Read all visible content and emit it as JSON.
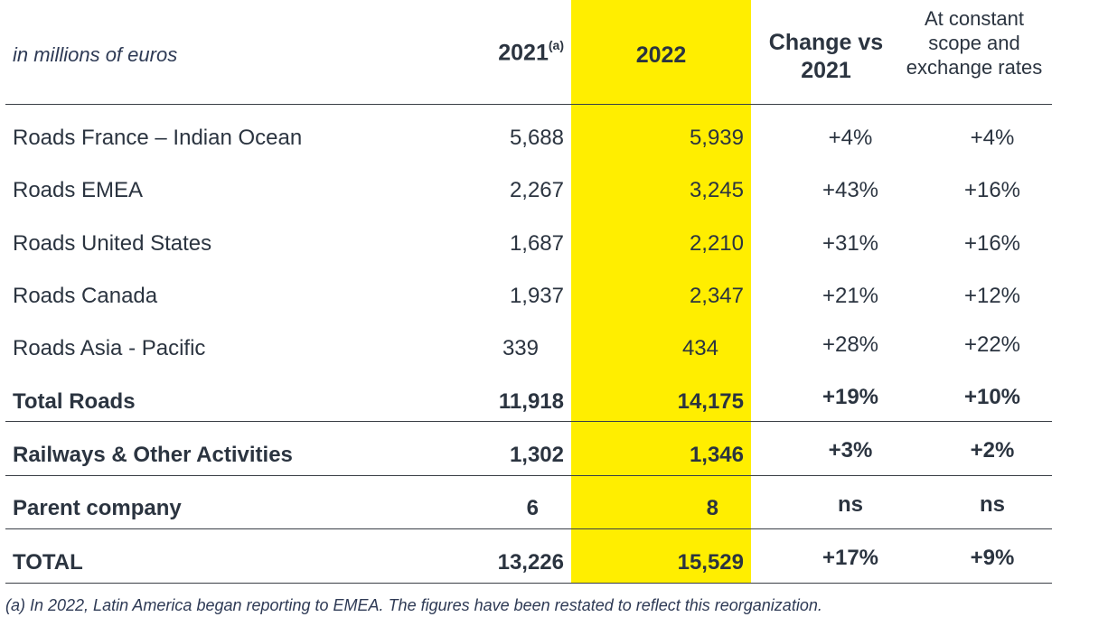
{
  "header": {
    "units": "in millions of euros",
    "col_2021": "2021",
    "col_2021_note": "(a)",
    "col_2022": "2022",
    "col_change": "Change vs 2021",
    "col_constant": "At constant scope and exchange rates"
  },
  "rows": [
    {
      "label": "Roads France – Indian Ocean",
      "v2021": "5,688",
      "v2022": "5,939",
      "change": "+4%",
      "constant": "+4%"
    },
    {
      "label": "Roads EMEA",
      "v2021": "2,267",
      "v2022": "3,245",
      "change": "+43%",
      "constant": "+16%"
    },
    {
      "label": "Roads United States",
      "v2021": "1,687",
      "v2022": "2,210",
      "change": "+31%",
      "constant": "+16%"
    },
    {
      "label": "Roads Canada",
      "v2021": "1,937",
      "v2022": "2,347",
      "change": "+21%",
      "constant": "+12%"
    },
    {
      "label": "Roads Asia - Pacific",
      "v2021": "339",
      "v2022": "434",
      "change": "+28%",
      "constant": "+22%"
    },
    {
      "label": "Total Roads",
      "v2021": "11,918",
      "v2022": "14,175",
      "change": "+19%",
      "constant": "+10%"
    },
    {
      "label": "Railways & Other Activities",
      "v2021": "1,302",
      "v2022": "1,346",
      "change": "+3%",
      "constant": "+2%"
    },
    {
      "label": "Parent company",
      "v2021": "6",
      "v2022": "8",
      "change": "ns",
      "constant": "ns"
    },
    {
      "label": "TOTAL",
      "v2021": "13,226",
      "v2022": "15,529",
      "change": "+17%",
      "constant": "+9%"
    }
  ],
  "footnote": "(a) In 2022, Latin America began reporting to EMEA. The figures have been restated to reflect this reorganization.",
  "colors": {
    "highlight": "#ffee00",
    "text": "#2b3440"
  }
}
